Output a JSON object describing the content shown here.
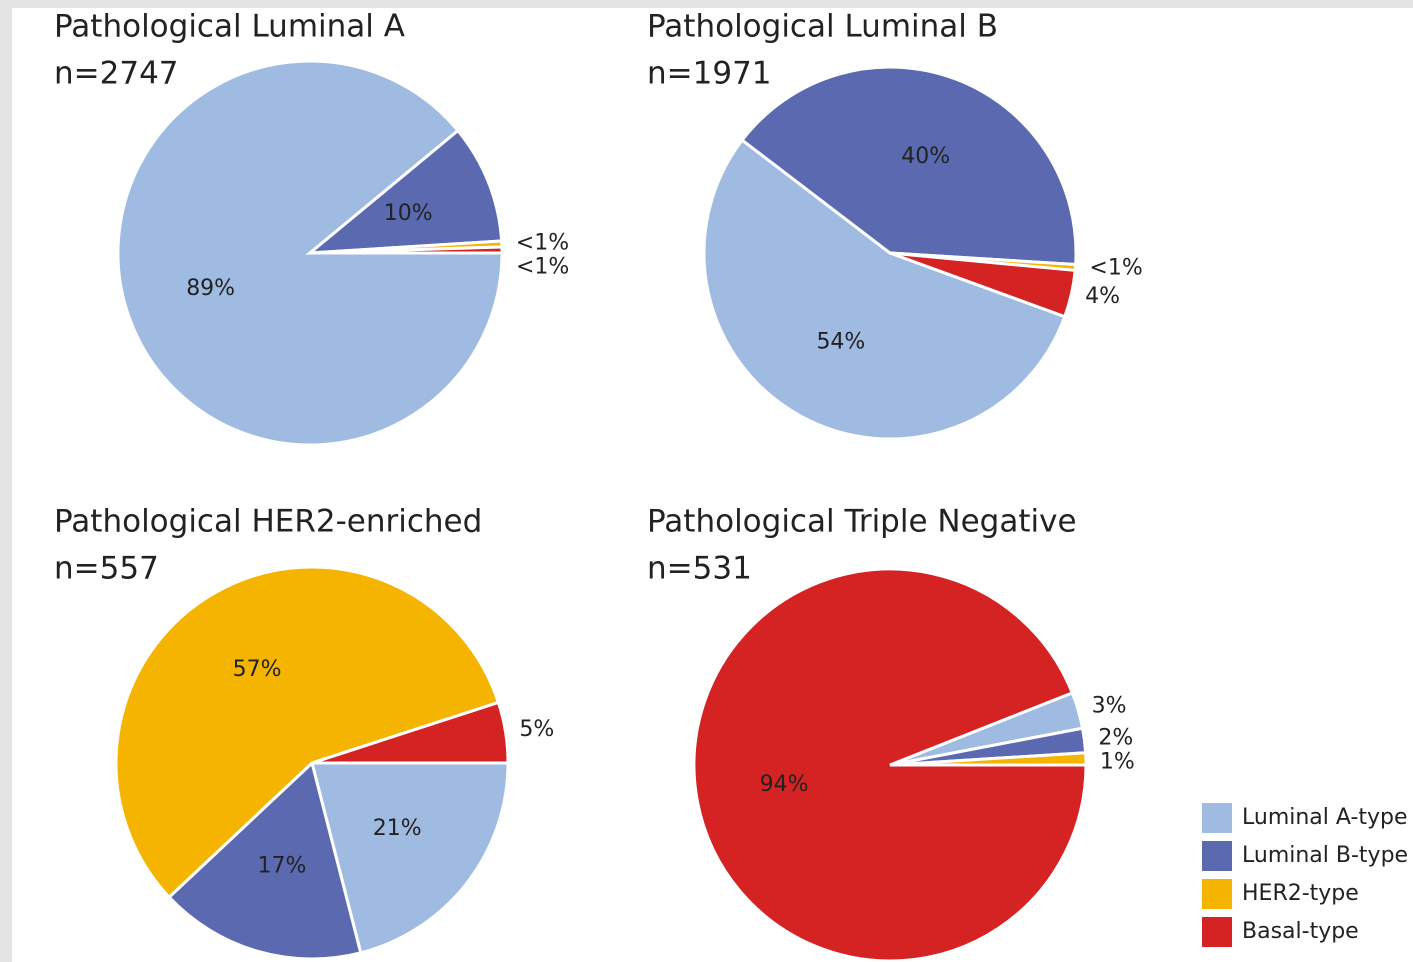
{
  "chart_data": [
    {
      "type": "pie",
      "title": "Pathological Luminal A",
      "subtitle": "n=2747",
      "categories": [
        "Luminal A-type",
        "Luminal B-type",
        "HER2-type",
        "Basal-type"
      ],
      "colors": [
        "#a0bbe2",
        "#5b6ab0",
        "#f5b400",
        "#d52222"
      ],
      "values": [
        89,
        10,
        0.5,
        0.5
      ],
      "value_labels": [
        "89%",
        "10%",
        "<1%",
        "<1%"
      ]
    },
    {
      "type": "pie",
      "title": "Pathological Luminal B",
      "subtitle": "n=1971",
      "categories": [
        "Luminal A-type",
        "Luminal B-type",
        "HER2-type",
        "Basal-type"
      ],
      "colors": [
        "#a0bbe2",
        "#5b6ab0",
        "#f5b400",
        "#d52222"
      ],
      "values": [
        54,
        40,
        0.5,
        4
      ],
      "value_labels": [
        "54%",
        "40%",
        "<1%",
        "4%"
      ]
    },
    {
      "type": "pie",
      "title": "Pathological HER2-enriched",
      "subtitle": "n=557",
      "categories": [
        "Luminal A-type",
        "Luminal B-type",
        "HER2-type",
        "Basal-type"
      ],
      "colors": [
        "#a0bbe2",
        "#5b6ab0",
        "#f5b400",
        "#d52222"
      ],
      "values": [
        21,
        17,
        57,
        5
      ],
      "value_labels": [
        "21%",
        "17%",
        "57%",
        "5%"
      ]
    },
    {
      "type": "pie",
      "title": "Pathological Triple Negative",
      "subtitle": "n=531",
      "categories": [
        "Luminal A-type",
        "Luminal B-type",
        "HER2-type",
        "Basal-type"
      ],
      "colors": [
        "#a0bbe2",
        "#5b6ab0",
        "#f5b400",
        "#d52222"
      ],
      "values": [
        3,
        2,
        1,
        94
      ],
      "value_labels": [
        "3%",
        "2%",
        "1%",
        "94%"
      ]
    }
  ]
}
